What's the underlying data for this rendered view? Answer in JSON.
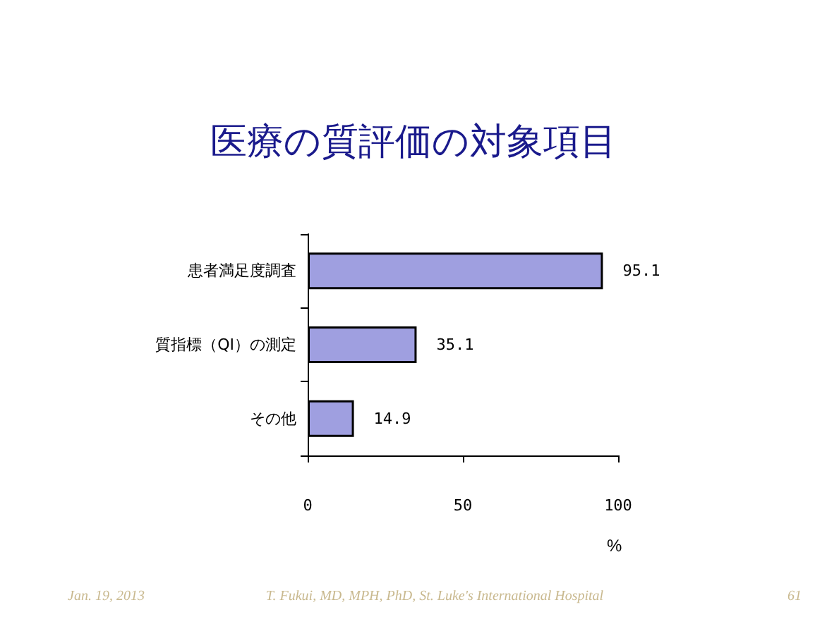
{
  "chart_data": {
    "type": "bar",
    "orientation": "horizontal",
    "title": "医療の質評価の対象項目",
    "categories": [
      "患者満足度調査",
      "質指標（QI）の測定",
      "その他"
    ],
    "values": [
      95.1,
      35.1,
      14.9
    ],
    "color": "#9f9fe0",
    "data_labels": true,
    "xlim": [
      0,
      100
    ],
    "xticks": [
      0,
      50,
      100
    ],
    "xlabel": "%",
    "grid": false,
    "annotations": [
      "Jan. 19, 2013",
      "T. Fukui, MD, MPH, PhD, St. Luke's International Hospital",
      "61"
    ]
  }
}
